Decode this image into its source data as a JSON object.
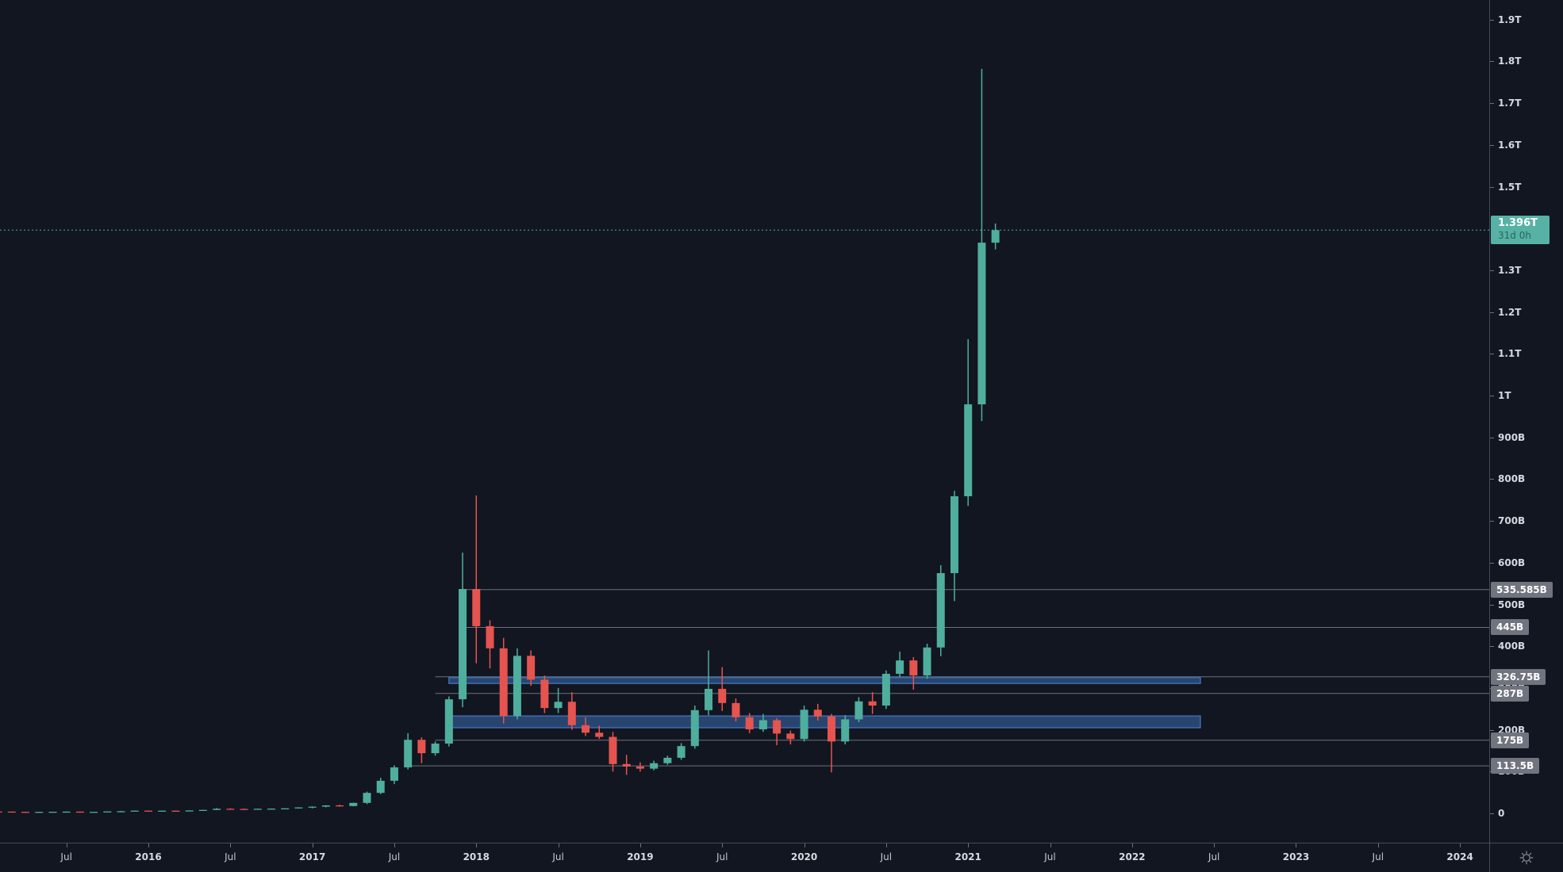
{
  "chart_data": {
    "type": "candlestick",
    "description": "Total crypto market capitalization, monthly candles, log-free linear scale in USD billions",
    "unit": "USD billions (B) / trillions (T)",
    "ylim": [
      0,
      1980
    ],
    "x_range": [
      "2015-02",
      "2024-03"
    ],
    "grid": "off",
    "last_price_value": 1396,
    "last_price_label": "1.396T",
    "countdown": "31d 0h",
    "candles": [
      [
        "2015-02",
        4.4,
        4.6,
        4.1,
        4.2
      ],
      [
        "2015-03",
        4.2,
        4.4,
        3.4,
        3.6
      ],
      [
        "2015-04",
        3.6,
        3.9,
        3.2,
        3.4
      ],
      [
        "2015-05",
        3.4,
        3.7,
        3.2,
        3.5
      ],
      [
        "2015-06",
        3.5,
        3.9,
        3.3,
        3.8
      ],
      [
        "2015-07",
        3.8,
        4.6,
        3.5,
        4.1
      ],
      [
        "2015-08",
        4.1,
        4.3,
        3.0,
        3.5
      ],
      [
        "2015-09",
        3.5,
        3.8,
        3.2,
        3.6
      ],
      [
        "2015-10",
        3.6,
        4.8,
        3.4,
        4.6
      ],
      [
        "2015-11",
        4.6,
        5.9,
        4.3,
        5.1
      ],
      [
        "2015-12",
        5.1,
        6.8,
        4.8,
        6.5
      ],
      [
        "2016-01",
        6.5,
        6.9,
        5.3,
        5.8
      ],
      [
        "2016-02",
        5.8,
        6.6,
        5.4,
        6.4
      ],
      [
        "2016-03",
        6.4,
        6.8,
        5.9,
        6.2
      ],
      [
        "2016-04",
        6.2,
        7.1,
        6.0,
        6.9
      ],
      [
        "2016-05",
        6.9,
        8.4,
        6.6,
        8.2
      ],
      [
        "2016-06",
        8.2,
        12.6,
        7.9,
        11.0
      ],
      [
        "2016-07",
        11.0,
        12.2,
        9.7,
        10.6
      ],
      [
        "2016-08",
        10.6,
        11.6,
        9.4,
        10.2
      ],
      [
        "2016-09",
        10.2,
        11.3,
        9.9,
        11.0
      ],
      [
        "2016-10",
        11.0,
        11.7,
        10.4,
        11.4
      ],
      [
        "2016-11",
        11.4,
        12.2,
        10.9,
        12.0
      ],
      [
        "2016-12",
        12.0,
        14.5,
        11.6,
        14.2
      ],
      [
        "2017-01",
        14.2,
        16.5,
        11.9,
        16.0
      ],
      [
        "2017-02",
        16.0,
        19.5,
        14.5,
        19.0
      ],
      [
        "2017-03",
        19.0,
        21.0,
        16.5,
        17.5
      ],
      [
        "2017-04",
        17.5,
        25.5,
        16.8,
        25.0
      ],
      [
        "2017-05",
        25.0,
        52.0,
        22.0,
        49.0
      ],
      [
        "2017-06",
        49.0,
        85.0,
        46.0,
        78.0
      ],
      [
        "2017-07",
        78.0,
        115.0,
        70.0,
        110.0
      ],
      [
        "2017-08",
        110,
        192,
        105,
        176
      ],
      [
        "2017-09",
        176,
        182,
        120,
        144
      ],
      [
        "2017-10",
        144,
        172,
        138,
        167
      ],
      [
        "2017-11",
        167,
        280,
        160,
        273
      ],
      [
        "2017-12",
        273,
        624,
        254,
        537
      ],
      [
        "2018-01",
        537,
        761,
        359,
        448
      ],
      [
        "2018-02",
        448,
        462,
        347,
        395
      ],
      [
        "2018-03",
        395,
        420,
        215,
        233
      ],
      [
        "2018-04",
        233,
        395,
        225,
        377
      ],
      [
        "2018-05",
        377,
        390,
        305,
        320
      ],
      [
        "2018-06",
        320,
        330,
        240,
        252
      ],
      [
        "2018-07",
        252,
        300,
        240,
        267
      ],
      [
        "2018-08",
        267,
        290,
        200,
        211
      ],
      [
        "2018-09",
        211,
        230,
        185,
        193
      ],
      [
        "2018-10",
        193,
        210,
        178,
        183
      ],
      [
        "2018-11",
        183,
        195,
        100,
        118
      ],
      [
        "2018-12",
        118,
        140,
        92,
        112
      ],
      [
        "2019-01",
        112,
        122,
        100,
        107
      ],
      [
        "2019-02",
        107,
        126,
        103,
        120
      ],
      [
        "2019-03",
        120,
        138,
        116,
        133
      ],
      [
        "2019-04",
        133,
        168,
        128,
        161
      ],
      [
        "2019-05",
        161,
        258,
        155,
        247
      ],
      [
        "2019-06",
        247,
        390,
        235,
        298
      ],
      [
        "2019-07",
        298,
        350,
        245,
        264
      ],
      [
        "2019-08",
        264,
        275,
        220,
        230
      ],
      [
        "2019-09",
        230,
        240,
        192,
        201
      ],
      [
        "2019-10",
        201,
        238,
        195,
        223
      ],
      [
        "2019-11",
        223,
        228,
        163,
        191
      ],
      [
        "2019-12",
        191,
        198,
        165,
        178
      ],
      [
        "2020-01",
        178,
        258,
        172,
        248
      ],
      [
        "2020-02",
        248,
        262,
        222,
        232
      ],
      [
        "2020-03",
        232,
        238,
        98,
        172
      ],
      [
        "2020-04",
        172,
        235,
        165,
        225
      ],
      [
        "2020-05",
        225,
        278,
        218,
        268
      ],
      [
        "2020-06",
        268,
        290,
        238,
        258
      ],
      [
        "2020-07",
        258,
        342,
        250,
        334
      ],
      [
        "2020-08",
        334,
        387,
        326,
        366
      ],
      [
        "2020-09",
        366,
        374,
        296,
        330
      ],
      [
        "2020-10",
        330,
        406,
        322,
        397
      ],
      [
        "2020-11",
        397,
        594,
        376,
        575
      ],
      [
        "2020-12",
        575,
        772,
        508,
        759
      ],
      [
        "2021-01",
        759,
        1135,
        736,
        979
      ],
      [
        "2021-02",
        979,
        1782,
        939,
        1366
      ],
      [
        "2021-03",
        1366,
        1412,
        1350,
        1396
      ]
    ],
    "price_lines": [
      {
        "label": "535.585B",
        "value": 535.585,
        "start": "2017-12"
      },
      {
        "label": "445B",
        "value": 445,
        "start": "2017-12"
      },
      {
        "label": "326.75B",
        "value": 326.75,
        "start": "2017-10"
      },
      {
        "label": "287B",
        "value": 287,
        "start": "2017-10"
      },
      {
        "label": "175B",
        "value": 175,
        "start": "2017-10"
      },
      {
        "label": "113.5B",
        "value": 113.5,
        "start": "2017-08"
      }
    ],
    "zones": [
      {
        "top": 325,
        "bottom": 311,
        "start": "2017-11",
        "end": "2022-06"
      },
      {
        "top": 233,
        "bottom": 205,
        "start": "2017-11",
        "end": "2022-06"
      }
    ],
    "price_axis_labels": [
      {
        "text": "1.9T",
        "value": 1900
      },
      {
        "text": "1.8T",
        "value": 1800
      },
      {
        "text": "1.7T",
        "value": 1700
      },
      {
        "text": "1.6T",
        "value": 1600
      },
      {
        "text": "1.5T",
        "value": 1500
      },
      {
        "text": "1.3T",
        "value": 1300
      },
      {
        "text": "1.2T",
        "value": 1200
      },
      {
        "text": "1.1T",
        "value": 1100
      },
      {
        "text": "1T",
        "value": 1000
      },
      {
        "text": "900B",
        "value": 900
      },
      {
        "text": "800B",
        "value": 800
      },
      {
        "text": "700B",
        "value": 700
      },
      {
        "text": "600B",
        "value": 600
      },
      {
        "text": "500B",
        "value": 500
      },
      {
        "text": "400B",
        "value": 400
      },
      {
        "text": "300B",
        "value": 300
      },
      {
        "text": "200B",
        "value": 200
      },
      {
        "text": "100B",
        "value": 100
      },
      {
        "text": "0",
        "value": 0
      }
    ],
    "time_axis_labels": [
      {
        "text": "Jul",
        "month": "2015-07",
        "year": false
      },
      {
        "text": "2016",
        "month": "2016-01",
        "year": true
      },
      {
        "text": "Jul",
        "month": "2016-07",
        "year": false
      },
      {
        "text": "2017",
        "month": "2017-01",
        "year": true
      },
      {
        "text": "Jul",
        "month": "2017-07",
        "year": false
      },
      {
        "text": "2018",
        "month": "2018-01",
        "year": true
      },
      {
        "text": "Jul",
        "month": "2018-07",
        "year": false
      },
      {
        "text": "2019",
        "month": "2019-01",
        "year": true
      },
      {
        "text": "Jul",
        "month": "2019-07",
        "year": false
      },
      {
        "text": "2020",
        "month": "2020-01",
        "year": true
      },
      {
        "text": "Jul",
        "month": "2020-07",
        "year": false
      },
      {
        "text": "2021",
        "month": "2021-01",
        "year": true
      },
      {
        "text": "Jul",
        "month": "2021-07",
        "year": false
      },
      {
        "text": "2022",
        "month": "2022-01",
        "year": true
      },
      {
        "text": "Jul",
        "month": "2022-07",
        "year": false
      },
      {
        "text": "2023",
        "month": "2023-01",
        "year": true
      },
      {
        "text": "Jul",
        "month": "2023-07",
        "year": false
      },
      {
        "text": "2024",
        "month": "2024-01",
        "year": true
      }
    ],
    "colors": {
      "background": "#121621",
      "up": "#4fae9d",
      "down": "#e6544f",
      "ray_line": "#6d717c",
      "ray_label_bg": "#70747e",
      "zone_fill": "#2b4a77",
      "zone_border": "#3e6cb5",
      "last_price_bg": "#57b2a5",
      "axis_text": "#d6d9e0",
      "axis_border": "#454a55"
    }
  },
  "price_axis": {
    "name": "price scale"
  },
  "time_axis": {
    "name": "time scale"
  },
  "corner": {
    "settings_icon": "price-scale-settings"
  }
}
